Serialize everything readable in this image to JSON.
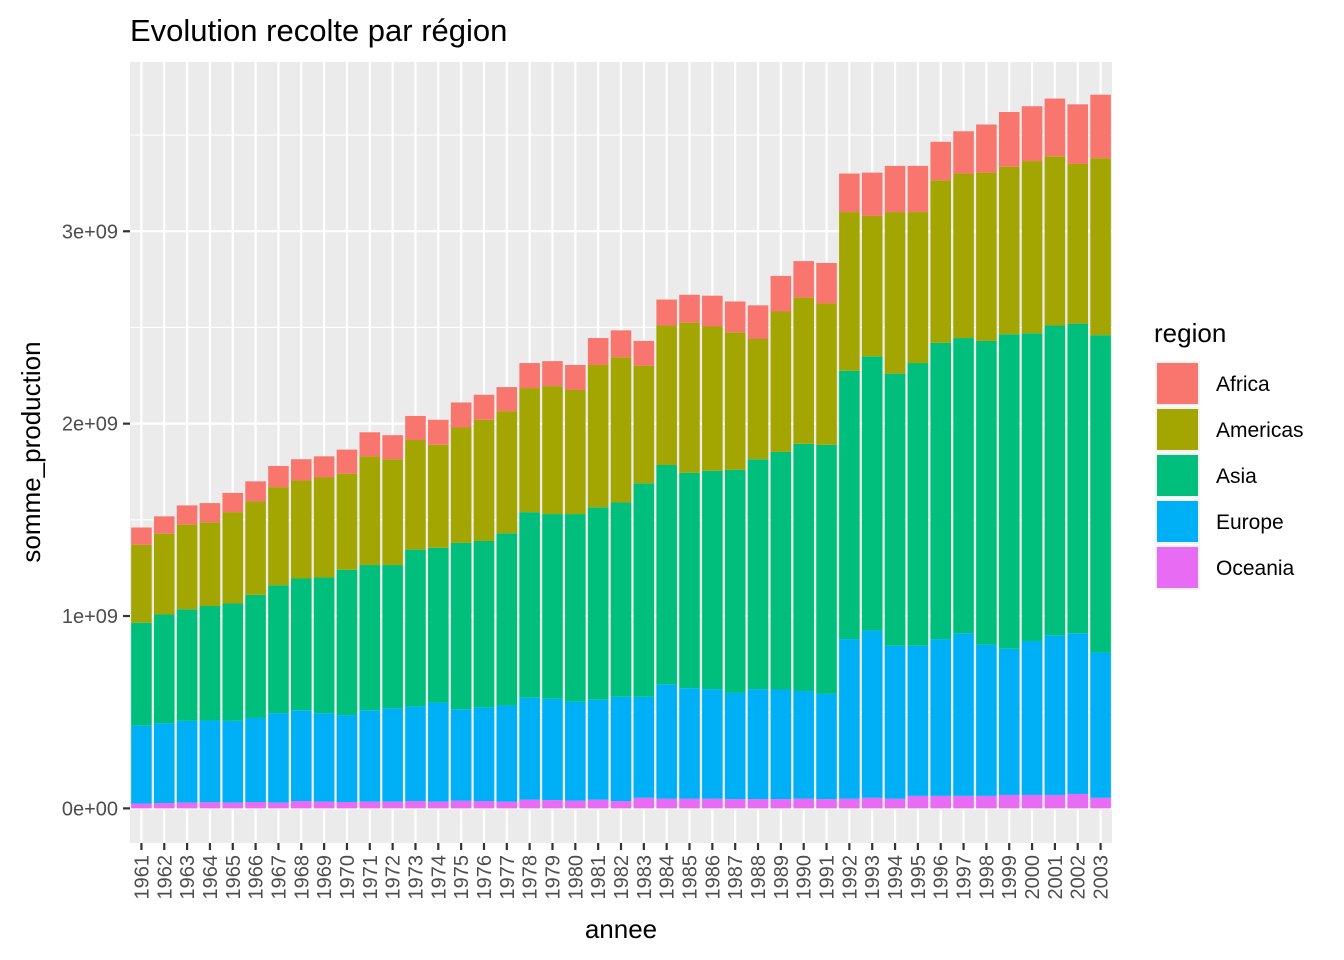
{
  "chart_data": {
    "type": "bar",
    "stacked": true,
    "title": "Evolution recolte par région",
    "xlabel": "annee",
    "ylabel": "somme_production",
    "ylim": [
      -180000000,
      3880000000
    ],
    "y_ticks": [
      0,
      1000000000,
      2000000000,
      3000000000
    ],
    "y_tick_labels": [
      "0e+00",
      "1e+09",
      "2e+09",
      "3e+09"
    ],
    "grid": true,
    "legend": {
      "title": "region",
      "position": "right"
    },
    "categories": [
      "1961",
      "1962",
      "1963",
      "1964",
      "1965",
      "1966",
      "1967",
      "1968",
      "1969",
      "1970",
      "1971",
      "1972",
      "1973",
      "1974",
      "1975",
      "1976",
      "1977",
      "1978",
      "1979",
      "1980",
      "1981",
      "1982",
      "1983",
      "1984",
      "1985",
      "1986",
      "1987",
      "1988",
      "1989",
      "1990",
      "1991",
      "1992",
      "1993",
      "1994",
      "1995",
      "1996",
      "1997",
      "1998",
      "1999",
      "2000",
      "2001",
      "2002",
      "2003"
    ],
    "series": [
      {
        "name": "Oceania",
        "color": "#E76BF3",
        "values": [
          25000000,
          28000000,
          30000000,
          32000000,
          30000000,
          33000000,
          30000000,
          38000000,
          35000000,
          33000000,
          35000000,
          35000000,
          38000000,
          35000000,
          40000000,
          38000000,
          35000000,
          45000000,
          43000000,
          40000000,
          45000000,
          38000000,
          55000000,
          50000000,
          50000000,
          50000000,
          48000000,
          48000000,
          48000000,
          50000000,
          48000000,
          50000000,
          55000000,
          50000000,
          65000000,
          65000000,
          65000000,
          65000000,
          70000000,
          70000000,
          70000000,
          75000000,
          55000000
        ]
      },
      {
        "name": "Europe",
        "color": "#00B0F6",
        "values": [
          405000000,
          415000000,
          425000000,
          425000000,
          425000000,
          437000000,
          465000000,
          472000000,
          460000000,
          452000000,
          475000000,
          485000000,
          492000000,
          515000000,
          475000000,
          487000000,
          500000000,
          530000000,
          527000000,
          515000000,
          520000000,
          542000000,
          525000000,
          595000000,
          575000000,
          570000000,
          552000000,
          572000000,
          570000000,
          560000000,
          547000000,
          830000000,
          870000000,
          795000000,
          780000000,
          815000000,
          845000000,
          785000000,
          760000000,
          800000000,
          830000000,
          835000000,
          755000000
        ]
      },
      {
        "name": "Asia",
        "color": "#00BF7D",
        "values": [
          535000000,
          565000000,
          580000000,
          595000000,
          610000000,
          640000000,
          665000000,
          685000000,
          705000000,
          755000000,
          755000000,
          745000000,
          815000000,
          805000000,
          865000000,
          865000000,
          895000000,
          965000000,
          960000000,
          975000000,
          1000000000,
          1010000000,
          1110000000,
          1140000000,
          1120000000,
          1135000000,
          1160000000,
          1195000000,
          1235000000,
          1285000000,
          1295000000,
          1395000000,
          1425000000,
          1415000000,
          1470000000,
          1540000000,
          1535000000,
          1580000000,
          1635000000,
          1600000000,
          1610000000,
          1610000000,
          1650000000
        ]
      },
      {
        "name": "Americas",
        "color": "#A3A500",
        "values": [
          405000000,
          420000000,
          440000000,
          435000000,
          475000000,
          485000000,
          510000000,
          510000000,
          520000000,
          500000000,
          565000000,
          550000000,
          570000000,
          535000000,
          600000000,
          630000000,
          635000000,
          645000000,
          665000000,
          645000000,
          740000000,
          755000000,
          610000000,
          725000000,
          780000000,
          750000000,
          715000000,
          625000000,
          730000000,
          760000000,
          735000000,
          825000000,
          730000000,
          840000000,
          785000000,
          845000000,
          855000000,
          875000000,
          870000000,
          895000000,
          880000000,
          830000000,
          920000000
        ]
      },
      {
        "name": "Africa",
        "color": "#F8766D",
        "values": [
          90000000,
          90000000,
          100000000,
          100000000,
          100000000,
          105000000,
          110000000,
          110000000,
          110000000,
          125000000,
          125000000,
          125000000,
          125000000,
          130000000,
          130000000,
          130000000,
          125000000,
          130000000,
          130000000,
          130000000,
          140000000,
          140000000,
          130000000,
          135000000,
          145000000,
          160000000,
          160000000,
          175000000,
          185000000,
          190000000,
          210000000,
          200000000,
          225000000,
          240000000,
          240000000,
          200000000,
          220000000,
          250000000,
          285000000,
          285000000,
          300000000,
          310000000,
          330000000
        ]
      }
    ],
    "legend_order": [
      "Africa",
      "Americas",
      "Asia",
      "Europe",
      "Oceania"
    ]
  }
}
